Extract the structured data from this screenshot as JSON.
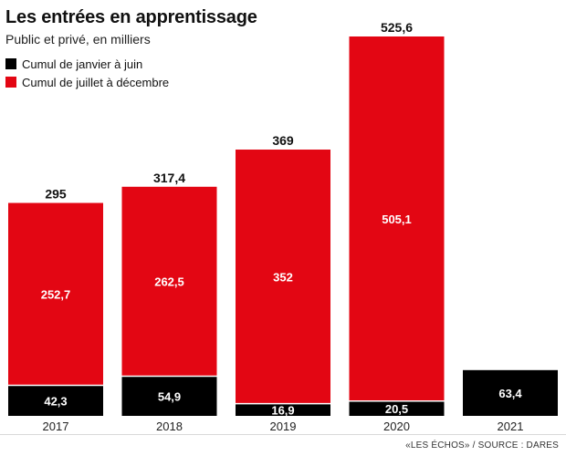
{
  "title": "Les entrées en apprentissage",
  "subtitle": "Public et privé, en milliers",
  "source": "«LES ÉCHOS» / SOURCE : DARES",
  "colors": {
    "first_half": "#000000",
    "second_half": "#e30613"
  },
  "chart_data": {
    "type": "bar",
    "stacked": true,
    "title": "Les entrées en apprentissage",
    "subtitle": "Public et privé, en milliers",
    "categories": [
      "2017",
      "2018",
      "2019",
      "2020",
      "2021"
    ],
    "series": [
      {
        "name": "Cumul de janvier à juin",
        "color": "#000000",
        "values": [
          42.3,
          54.9,
          16.9,
          20.5,
          63.4
        ],
        "labels": [
          "42,3",
          "54,9",
          "16,9",
          "20,5",
          "63,4"
        ]
      },
      {
        "name": "Cumul de juillet à décembre",
        "color": "#e30613",
        "values": [
          252.7,
          262.5,
          352,
          505.1,
          null
        ],
        "labels": [
          "252,7",
          "262,5",
          "352",
          "505,1",
          null
        ]
      }
    ],
    "totals": [
      295,
      317.4,
      369,
      525.6,
      null
    ],
    "total_labels": [
      "295",
      "317,4",
      "369",
      "525,6",
      null
    ],
    "ylim": [
      0,
      525.6
    ],
    "legend_position": "top-left",
    "grid": false,
    "xlabel": "",
    "ylabel": ""
  }
}
